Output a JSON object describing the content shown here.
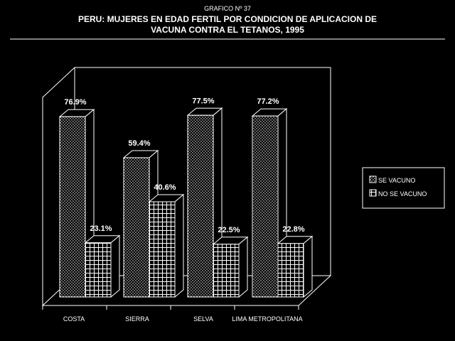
{
  "header": {
    "subtitle": "GRAFICO Nº 37",
    "title_line1": "PERU: MUJERES EN EDAD FERTIL POR CONDICION DE APLICACION DE",
    "title_line2": "VACUNA CONTRA EL TETANOS, 1995"
  },
  "chart_data": {
    "type": "bar",
    "categories": [
      "COSTA",
      "SIERRA",
      "SELVA",
      "LIMA METROPOLITANA"
    ],
    "series": [
      {
        "name": "SE VACUNO",
        "values": [
          76.9,
          59.4,
          77.5,
          77.2
        ],
        "labels": [
          "76.9%",
          "59.4%",
          "77.5%",
          "77.2%"
        ],
        "pattern": "dots"
      },
      {
        "name": "NO SE VACUNO",
        "values": [
          23.1,
          40.6,
          22.5,
          22.8
        ],
        "labels": [
          "23.1%",
          "40.6%",
          "22.5%",
          "22.8%"
        ],
        "pattern": "grid"
      }
    ],
    "ylim": [
      0,
      100
    ],
    "legend": "right",
    "grid": false,
    "style": "3d"
  },
  "colors": {
    "background": "#000000",
    "foreground": "#ffffff"
  }
}
